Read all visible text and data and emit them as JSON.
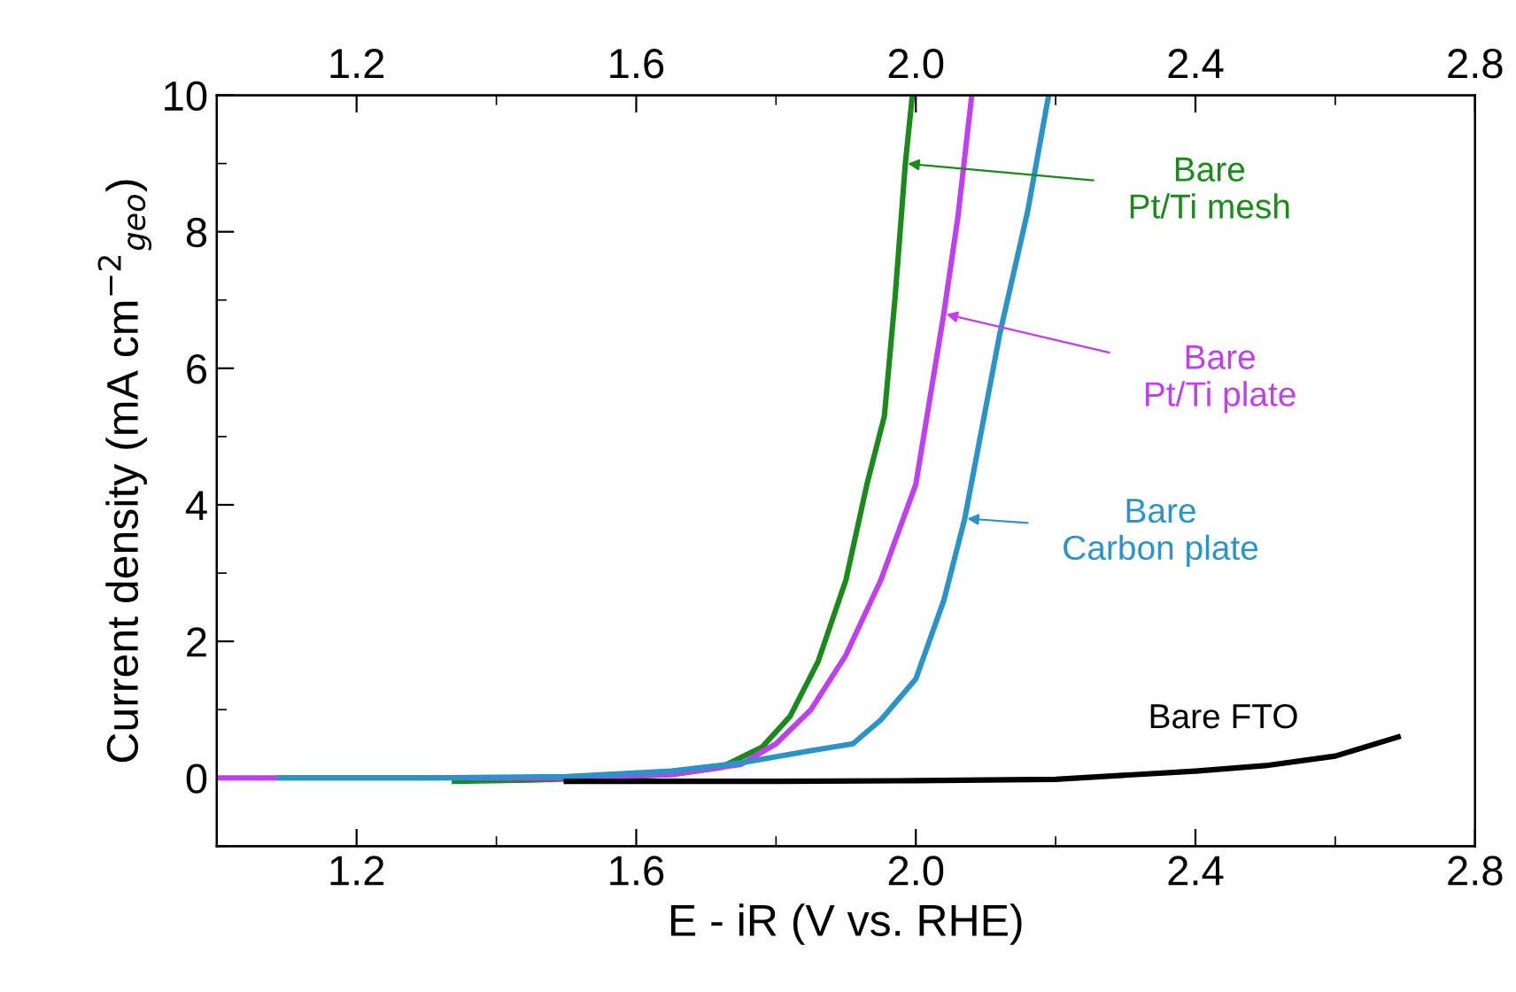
{
  "chart_data": {
    "type": "line",
    "xlabel": "E - iR (V vs. RHE)",
    "ylabel": "Current density (mA cm$^{−2}$$_{geo}$)",
    "xlim": [
      1.0,
      2.8
    ],
    "xticks": [
      1.2,
      1.6,
      {
        "value": 2.0,
        "label": "2.0"
      },
      2.4,
      2.8
    ],
    "x2lim": [
      1.0,
      2.8
    ],
    "x2ticks": [
      1.2,
      1.6,
      {
        "value": 2.0,
        "label": "2.0"
      },
      2.4,
      2.8
    ],
    "ylim": [
      -1,
      10
    ],
    "yticks": [
      0,
      2,
      4,
      6,
      8,
      10
    ],
    "grid": false,
    "legend": "right",
    "marker": "none",
    "line_style": "solid",
    "series": [
      {
        "name": "Bare\nPt/Ti mesh",
        "color": "#1a8a1a",
        "x": [
          1.34,
          1.45,
          1.55,
          1.65,
          1.72,
          1.78,
          1.82,
          1.86,
          1.9,
          1.93,
          1.955,
          1.97,
          1.985,
          1.995
        ],
        "values": [
          -0.05,
          -0.03,
          0.0,
          0.05,
          0.15,
          0.45,
          0.9,
          1.7,
          2.9,
          4.3,
          5.3,
          7.0,
          9.0,
          10.0
        ]
      },
      {
        "name": "Bare\nPt/Ti plate",
        "color": "#c040f0",
        "x": [
          1.0,
          1.3,
          1.5,
          1.65,
          1.75,
          1.8,
          1.85,
          1.9,
          1.95,
          2.0,
          2.04,
          2.06,
          2.08
        ],
        "values": [
          0,
          0,
          0,
          0.05,
          0.2,
          0.5,
          1.0,
          1.8,
          2.9,
          4.3,
          6.8,
          8.2,
          10.0
        ]
      },
      {
        "name": "Bare\nCarbon plate",
        "color": "#2a94c8",
        "x": [
          1.09,
          1.3,
          1.5,
          1.65,
          1.75,
          1.85,
          1.91,
          1.95,
          2.0,
          2.04,
          2.07,
          2.12,
          2.16,
          2.19
        ],
        "values": [
          0,
          0,
          0.02,
          0.1,
          0.22,
          0.4,
          0.5,
          0.85,
          1.45,
          2.6,
          3.8,
          6.5,
          8.3,
          10.0
        ]
      },
      {
        "name": "Bare FTO",
        "color": "#000000",
        "x": [
          1.5,
          1.8,
          2.0,
          2.2,
          2.4,
          2.5,
          2.6,
          2.69
        ],
        "values": [
          -0.05,
          -0.05,
          -0.04,
          -0.02,
          0.1,
          0.18,
          0.32,
          0.6
        ]
      }
    ]
  }
}
